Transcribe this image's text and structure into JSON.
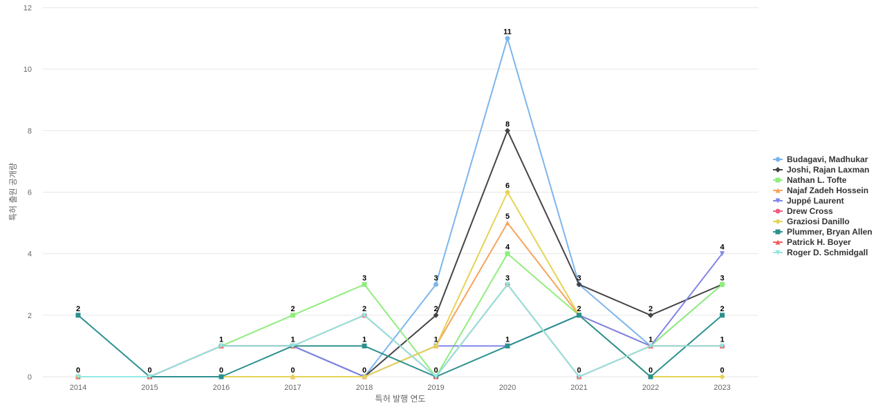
{
  "chart_data": {
    "type": "line",
    "xlabel": "특허 발행 연도",
    "ylabel": "특허 출원 공개량",
    "ylim": [
      0,
      12
    ],
    "yticks": [
      0,
      2,
      4,
      6,
      8,
      10,
      12
    ],
    "grid": true,
    "legend_position": "right",
    "data_labels": true,
    "x": [
      "2014",
      "2015",
      "2016",
      "2017",
      "2018",
      "2019",
      "2020",
      "2021",
      "2022",
      "2023"
    ],
    "series": [
      {
        "name": "Budagavi, Madhukar",
        "color": "#7cb5ec",
        "marker": "circle",
        "values": [
          0,
          0,
          1,
          1,
          0,
          3,
          11,
          3,
          1,
          3
        ]
      },
      {
        "name": "Joshi, Rajan Laxman",
        "color": "#434348",
        "marker": "diamond",
        "values": [
          0,
          0,
          1,
          1,
          0,
          2,
          8,
          3,
          2,
          3
        ]
      },
      {
        "name": "Nathan L. Tofte",
        "color": "#90ed7d",
        "marker": "square",
        "values": [
          0,
          0,
          1,
          2,
          3,
          0,
          4,
          2,
          1,
          3
        ]
      },
      {
        "name": "Najaf Zadeh Hossein",
        "color": "#f7a35c",
        "marker": "triangle",
        "values": [
          0,
          0,
          0,
          0,
          0,
          1,
          5,
          2,
          1,
          1
        ]
      },
      {
        "name": "Juppé Laurent",
        "color": "#8085e9",
        "marker": "triangle-down",
        "values": [
          0,
          0,
          1,
          1,
          0,
          1,
          1,
          2,
          1,
          4
        ]
      },
      {
        "name": "Drew Cross",
        "color": "#f15c80",
        "marker": "circle",
        "values": [
          0,
          0,
          1,
          1,
          2,
          0,
          3,
          0,
          1,
          1
        ]
      },
      {
        "name": "Graziosi Danillo",
        "color": "#e4d354",
        "marker": "diamond",
        "values": [
          0,
          0,
          0,
          0,
          0,
          1,
          6,
          2,
          0,
          0
        ]
      },
      {
        "name": "Plummer, Bryan Allen",
        "color": "#2b908f",
        "marker": "square",
        "values": [
          2,
          0,
          0,
          1,
          1,
          0,
          1,
          2,
          0,
          2
        ]
      },
      {
        "name": "Patrick H. Boyer",
        "color": "#f45b5b",
        "marker": "triangle",
        "values": [
          0,
          0,
          1,
          1,
          2,
          0,
          3,
          0,
          1,
          1
        ]
      },
      {
        "name": "Roger D. Schmidgall",
        "color": "#91e8e1",
        "marker": "triangle-down",
        "values": [
          0,
          0,
          1,
          1,
          2,
          0,
          3,
          0,
          1,
          1
        ]
      }
    ],
    "point_labels": [
      {
        "year": "2014",
        "value": 0
      },
      {
        "year": "2014",
        "value": 2
      },
      {
        "year": "2015",
        "value": 0
      },
      {
        "year": "2016",
        "value": 0
      },
      {
        "year": "2016",
        "value": 1
      },
      {
        "year": "2017",
        "value": 0
      },
      {
        "year": "2017",
        "value": 1
      },
      {
        "year": "2017",
        "value": 2
      },
      {
        "year": "2018",
        "value": 0
      },
      {
        "year": "2018",
        "value": 1
      },
      {
        "year": "2018",
        "value": 2
      },
      {
        "year": "2018",
        "value": 3
      },
      {
        "year": "2019",
        "value": 0
      },
      {
        "year": "2019",
        "value": 1
      },
      {
        "year": "2019",
        "value": 2
      },
      {
        "year": "2019",
        "value": 3
      },
      {
        "year": "2020",
        "value": 1
      },
      {
        "year": "2020",
        "value": 3
      },
      {
        "year": "2020",
        "value": 4
      },
      {
        "year": "2020",
        "value": 5
      },
      {
        "year": "2020",
        "value": 6
      },
      {
        "year": "2020",
        "value": 8
      },
      {
        "year": "2020",
        "value": 11
      },
      {
        "year": "2021",
        "value": 0
      },
      {
        "year": "2021",
        "value": 2
      },
      {
        "year": "2021",
        "value": 3
      },
      {
        "year": "2022",
        "value": 0
      },
      {
        "year": "2022",
        "value": 1
      },
      {
        "year": "2022",
        "value": 2
      },
      {
        "year": "2023",
        "value": 0
      },
      {
        "year": "2023",
        "value": 1
      },
      {
        "year": "2023",
        "value": 2
      },
      {
        "year": "2023",
        "value": 3
      },
      {
        "year": "2023",
        "value": 4
      }
    ]
  }
}
